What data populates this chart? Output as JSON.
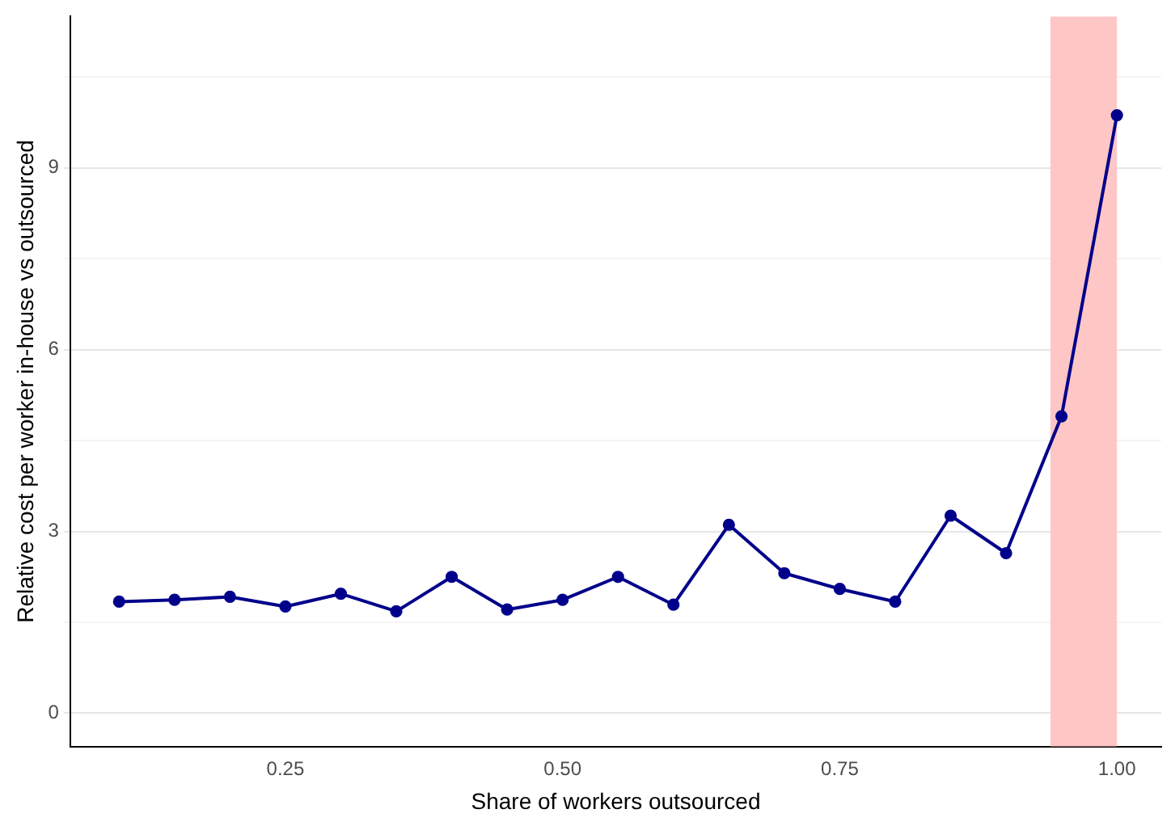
{
  "chart_data": {
    "type": "line",
    "xlabel": "Share of workers outsourced",
    "ylabel": "Relative cost per worker in-house vs outsourced",
    "x": [
      0.1,
      0.15,
      0.2,
      0.25,
      0.3,
      0.35,
      0.4,
      0.45,
      0.5,
      0.55,
      0.6,
      0.65,
      0.7,
      0.75,
      0.8,
      0.85,
      0.9,
      0.95,
      1.0
    ],
    "series": [
      {
        "color": "#00008b",
        "values": [
          1.84,
          1.87,
          1.92,
          1.76,
          1.97,
          1.68,
          2.25,
          1.71,
          1.87,
          2.25,
          1.79,
          3.11,
          2.31,
          2.05,
          1.84,
          3.26,
          2.64,
          4.9,
          9.87
        ]
      }
    ],
    "xlim": [
      0.056,
      1.04
    ],
    "xticks": [
      {
        "value": 0.25,
        "label": "0.25"
      },
      {
        "value": 0.5,
        "label": "0.50"
      },
      {
        "value": 0.75,
        "label": "0.75"
      },
      {
        "value": 1,
        "label": "1.00"
      }
    ],
    "ylim": [
      -0.55,
      11.5
    ],
    "yticks": [
      0,
      {
        "value": 1.5,
        "label": null
      },
      3,
      {
        "value": 4.5,
        "label": null
      },
      6,
      {
        "value": 7.5,
        "label": null
      },
      9,
      {
        "value": 10.5,
        "label": null
      }
    ],
    "bands": [
      {
        "axis": "x",
        "from": 0.94,
        "to": 1.0,
        "color": "#ffc6c6"
      }
    ],
    "grid": "y",
    "marker": "circle",
    "line_style": "solid",
    "legend": false
  }
}
